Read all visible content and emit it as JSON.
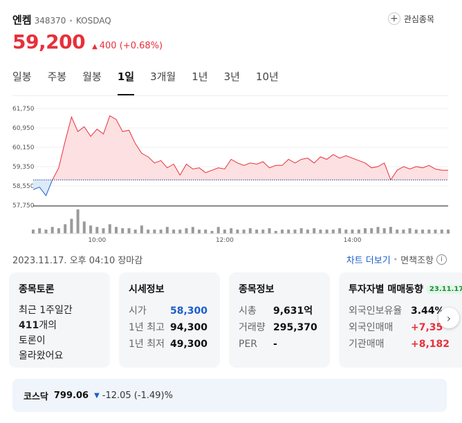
{
  "stock": {
    "name": "엔켐",
    "code": "348370",
    "market": "KOSDAQ",
    "price": "59,200",
    "change": "400",
    "change_pct": "(+0.68%)",
    "watch_label": "관심종목"
  },
  "tabs": [
    {
      "label": "일봉"
    },
    {
      "label": "주봉"
    },
    {
      "label": "월봉"
    },
    {
      "label": "1일"
    },
    {
      "label": "3개월"
    },
    {
      "label": "1년"
    },
    {
      "label": "3년"
    },
    {
      "label": "10년"
    }
  ],
  "active_tab": "1일",
  "timestamp": "2023.11.17. 오후 04:10 장마감",
  "links": {
    "chart_more": "차트 더보기",
    "disclaimer": "면책조항"
  },
  "chart_data": {
    "type": "area",
    "reference_price": 58800,
    "y_ticks": [
      "61,750",
      "60,950",
      "60,150",
      "59,350",
      "58,550",
      "57,750"
    ],
    "y_tick_values": [
      61750,
      60950,
      60150,
      59350,
      58550,
      57750
    ],
    "x_ticks": [
      "10:00",
      "12:00",
      "14:00"
    ],
    "ylim": [
      57750,
      61750
    ],
    "x": [
      0,
      6,
      12,
      18,
      24,
      30,
      36,
      42,
      48,
      54,
      60,
      66,
      72,
      78,
      84,
      90,
      96,
      102,
      108,
      114,
      120,
      126,
      132,
      138,
      144,
      150,
      156,
      162,
      168,
      174,
      180,
      186,
      192,
      198,
      204,
      210,
      216,
      222,
      228,
      234,
      240,
      246,
      252,
      258,
      264,
      270,
      276,
      282,
      288,
      294,
      300,
      306,
      312,
      318,
      324,
      330,
      336,
      342,
      348,
      354,
      360,
      366,
      372,
      378,
      384,
      390
    ],
    "values": [
      58400,
      58500,
      58150,
      58800,
      59300,
      60400,
      61400,
      60800,
      61000,
      60600,
      60900,
      60700,
      61450,
      61300,
      60800,
      60850,
      60300,
      59900,
      59750,
      59500,
      59600,
      59300,
      59450,
      59000,
      59450,
      59250,
      59300,
      59100,
      59200,
      59300,
      59250,
      59650,
      59500,
      59400,
      59500,
      59450,
      59550,
      59300,
      59400,
      59400,
      59650,
      59500,
      59650,
      59700,
      59500,
      59750,
      59650,
      59850,
      59700,
      59800,
      59700,
      59600,
      59500,
      59300,
      59350,
      59500,
      58800,
      59200,
      59350,
      59250,
      59350,
      59300,
      59400,
      59250,
      59200,
      59200
    ],
    "volume": [
      3,
      4,
      3,
      5,
      4,
      7,
      11,
      18,
      9,
      6,
      5,
      4,
      7,
      5,
      4,
      4,
      3,
      6,
      3,
      3,
      3,
      5,
      3,
      3,
      4,
      5,
      3,
      3,
      2,
      5,
      3,
      4,
      3,
      3,
      4,
      3,
      3,
      4,
      2,
      3,
      3,
      3,
      4,
      3,
      4,
      3,
      3,
      3,
      4,
      3,
      3,
      3,
      4,
      4,
      5,
      4,
      5,
      3,
      3,
      4,
      3,
      3,
      3,
      3,
      3,
      3
    ],
    "xlim": [
      0,
      390
    ],
    "x_tick_values": [
      60,
      180,
      300
    ]
  },
  "cards": {
    "discussion": {
      "title": "종목토론",
      "line1": "최근 1주일간",
      "count": "411",
      "line2": "개의",
      "line3": "토론이",
      "line4": "올라왔어요"
    },
    "quote": {
      "title": "시세정보",
      "rows": [
        {
          "k": "시가",
          "v": "58,300"
        },
        {
          "k": "1년 최고",
          "v": "94,300"
        },
        {
          "k": "1년 최저",
          "v": "49,300"
        }
      ]
    },
    "info": {
      "title": "종목정보",
      "rows": [
        {
          "k": "시총",
          "v": "9,631억"
        },
        {
          "k": "거래량",
          "v": "295,370"
        },
        {
          "k": "PER",
          "v": "-"
        }
      ]
    },
    "investor": {
      "title": "투자자별 매매동향",
      "badge": "23.11.17",
      "rows": [
        {
          "k": "외국인보유율",
          "v": "3.44%"
        },
        {
          "k": "외국인매매",
          "v": "+7,35"
        },
        {
          "k": "기관매매",
          "v": "+8,182"
        }
      ]
    }
  },
  "index": {
    "name": "코스닥",
    "value": "799.06",
    "change": "-12.05 (-1.49)%"
  },
  "colors": {
    "up": "#e8303a",
    "down": "#1a5fc9",
    "fill_up": "#fde0e2",
    "fill_down": "#dcebf9"
  }
}
